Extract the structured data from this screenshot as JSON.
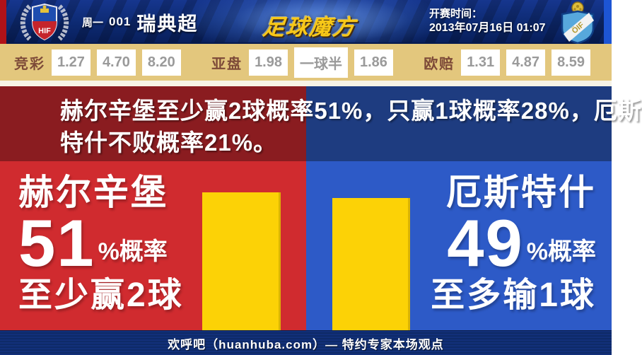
{
  "header": {
    "weekday": "周一",
    "match_number": "001",
    "league": "瑞典超",
    "site_logo": "足球魔方",
    "kickoff_label": "开赛时间：",
    "kickoff_datetime": "2013年07月16日 01:07",
    "home_badge": "HIF",
    "away_badge": "ÖIF"
  },
  "odds_bar": {
    "groups": [
      {
        "label": "竞彩",
        "values": [
          "1.27",
          "4.70",
          "8.20"
        ]
      },
      {
        "label": "亚盘",
        "values": [
          "1.98",
          "一球半",
          "1.86"
        ]
      },
      {
        "label": "欧赔",
        "values": [
          "1.31",
          "4.87",
          "8.59"
        ]
      }
    ]
  },
  "headline": {
    "line1": "赫尔辛堡至少赢2球概率51%，只赢1球概率28%，厄斯",
    "line2": "特什不败概率21%。"
  },
  "prediction": {
    "left": {
      "team": "赫尔辛堡",
      "percent": "51",
      "percent_unit": "%概率",
      "outcome": "至少赢2球"
    },
    "right": {
      "team": "厄斯特什",
      "percent": "49",
      "percent_unit": "%概率",
      "outcome": "至多输1球"
    }
  },
  "chart_data": {
    "type": "bar",
    "categories": [
      "赫尔辛堡至少赢2球",
      "厄斯特什至多输1球"
    ],
    "values": [
      51,
      49
    ],
    "bar_color": "#fcd206"
  },
  "footer": {
    "text": "欢呼吧（huanhuba.com）— 特约专家本场观点"
  },
  "colors": {
    "left_bright": "#d02b2f",
    "right_bright": "#2d5ac7",
    "left_dark": "#8a1c20",
    "right_dark": "#1e3c80",
    "bar_yellow": "#fcd206",
    "odds_bg": "#e3c77d",
    "odds_label": "#7d4a38",
    "odds_value": "#9a9a9a",
    "topbar_navy": "#0d2a72",
    "footer_navy": "#0e2a68"
  }
}
